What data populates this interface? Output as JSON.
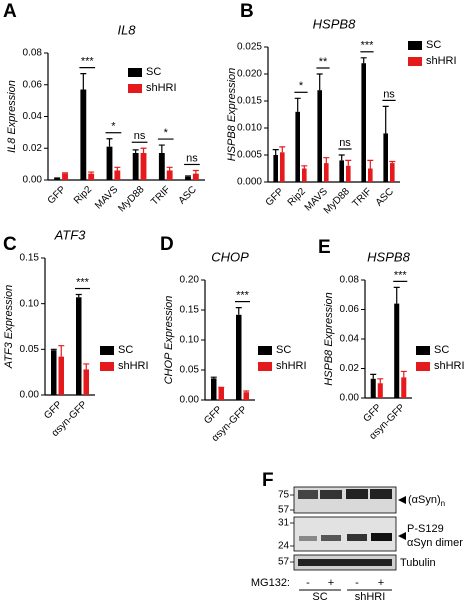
{
  "chart_data": [
    {
      "panel": "A",
      "type": "bar",
      "title": "IL8",
      "y_label": "IL8 Expression",
      "categories": [
        "GFP",
        "Rip2",
        "MAVS",
        "MyD88",
        "TRIF",
        "ASC"
      ],
      "series": [
        {
          "name": "SC",
          "color": "#000000",
          "values": [
            0.001,
            0.057,
            0.021,
            0.017,
            0.017,
            0.002
          ],
          "errors": [
            0.0003,
            0.01,
            0.005,
            0.002,
            0.005,
            0.0005
          ]
        },
        {
          "name": "shHRI",
          "color": "#e41a1c",
          "values": [
            0.004,
            0.004,
            0.006,
            0.017,
            0.006,
            0.004
          ],
          "errors": [
            0.0005,
            0.001,
            0.002,
            0.003,
            0.002,
            0.002
          ]
        }
      ],
      "significance": [
        null,
        "***",
        "*",
        "ns",
        "*",
        "ns"
      ],
      "ylim": [
        0,
        0.08
      ],
      "yticks": [
        {
          "value": 0,
          "label": "0.00"
        },
        {
          "value": 0.02,
          "label": "0.02"
        },
        {
          "value": 0.04,
          "label": "0.04"
        },
        {
          "value": 0.06,
          "label": "0.06"
        },
        {
          "value": 0.08,
          "label": "0.08"
        }
      ]
    },
    {
      "panel": "B",
      "type": "bar",
      "title": "HSPB8",
      "y_label": "HSPB8 Expression",
      "categories": [
        "GFP",
        "Rip2",
        "MAVS",
        "MyD88",
        "TRIF",
        "ASC"
      ],
      "series": [
        {
          "name": "SC",
          "color": "#000000",
          "values": [
            0.005,
            0.013,
            0.017,
            0.004,
            0.022,
            0.009
          ],
          "errors": [
            0.001,
            0.0025,
            0.003,
            0.001,
            0.001,
            0.005
          ]
        },
        {
          "name": "shHRI",
          "color": "#e41a1c",
          "values": [
            0.0055,
            0.0025,
            0.0035,
            0.003,
            0.0025,
            0.0035
          ],
          "errors": [
            0.001,
            0.0005,
            0.001,
            0.001,
            0.0015,
            0.0003
          ]
        }
      ],
      "significance": [
        null,
        "*",
        "**",
        "ns",
        "***",
        "ns"
      ],
      "ylim": [
        0,
        0.025
      ],
      "yticks": [
        {
          "value": 0,
          "label": "0.000"
        },
        {
          "value": 0.005,
          "label": "0.005"
        },
        {
          "value": 0.01,
          "label": "0.010"
        },
        {
          "value": 0.015,
          "label": "0.015"
        },
        {
          "value": 0.02,
          "label": "0.020"
        },
        {
          "value": 0.025,
          "label": "0.025"
        }
      ]
    },
    {
      "panel": "C",
      "type": "bar",
      "title": "ATF3",
      "y_label": "ATF3 Expression",
      "categories": [
        "GFP",
        "αsyn-GFP"
      ],
      "series": [
        {
          "name": "SC",
          "color": "#000000",
          "values": [
            0.049,
            0.107
          ],
          "errors": [
            0.001,
            0.003
          ]
        },
        {
          "name": "shHRI",
          "color": "#e41a1c",
          "values": [
            0.042,
            0.028
          ],
          "errors": [
            0.012,
            0.006
          ]
        }
      ],
      "significance": [
        null,
        "***"
      ],
      "ylim": [
        0,
        0.15
      ],
      "yticks": [
        {
          "value": 0,
          "label": "0.00"
        },
        {
          "value": 0.05,
          "label": "0.05"
        },
        {
          "value": 0.1,
          "label": "0.10"
        },
        {
          "value": 0.15,
          "label": "0.15"
        }
      ]
    },
    {
      "panel": "D",
      "type": "bar",
      "title": "CHOP",
      "y_label": "CHOP Expression",
      "categories": [
        "GFP",
        "αsyn-GFP"
      ],
      "series": [
        {
          "name": "SC",
          "color": "#000000",
          "values": [
            0.036,
            0.142
          ],
          "errors": [
            0.002,
            0.012
          ]
        },
        {
          "name": "shHRI",
          "color": "#e41a1c",
          "values": [
            0.02,
            0.013
          ],
          "errors": [
            0.001,
            0.002
          ]
        }
      ],
      "significance": [
        null,
        "***"
      ],
      "ylim": [
        0,
        0.2
      ],
      "yticks": [
        {
          "value": 0,
          "label": "0.00"
        },
        {
          "value": 0.05,
          "label": "0.05"
        },
        {
          "value": 0.1,
          "label": "0.10"
        },
        {
          "value": 0.15,
          "label": "0.15"
        },
        {
          "value": 0.2,
          "label": "0.20"
        }
      ]
    },
    {
      "panel": "E",
      "type": "bar",
      "title": "HSPB8",
      "y_label": "HSPB8 Expression",
      "categories": [
        "GFP",
        "αsyn-GFP"
      ],
      "series": [
        {
          "name": "SC",
          "color": "#000000",
          "values": [
            0.013,
            0.064
          ],
          "errors": [
            0.003,
            0.011
          ]
        },
        {
          "name": "shHRI",
          "color": "#e41a1c",
          "values": [
            0.01,
            0.014
          ],
          "errors": [
            0.003,
            0.004
          ]
        }
      ],
      "significance": [
        null,
        "***"
      ],
      "ylim": [
        0,
        0.08
      ],
      "yticks": [
        {
          "value": 0,
          "label": "0.00"
        },
        {
          "value": 0.02,
          "label": "0.02"
        },
        {
          "value": 0.04,
          "label": "0.04"
        },
        {
          "value": 0.06,
          "label": "0.06"
        },
        {
          "value": 0.08,
          "label": "0.08"
        }
      ]
    }
  ],
  "blot": {
    "panel": "F",
    "markers": [
      "75",
      "57",
      "31",
      "24",
      "57"
    ],
    "labels": {
      "oligomer": "(αSyn)",
      "oligomer_sub": "n",
      "phospho": "P-S129",
      "dimer": "αSyn dimer",
      "tubulin": "Tubulin"
    },
    "treatment": "MG132:",
    "lanes": [
      "-",
      "+",
      "-",
      "+"
    ],
    "groups": [
      "SC",
      "shHRI"
    ]
  }
}
